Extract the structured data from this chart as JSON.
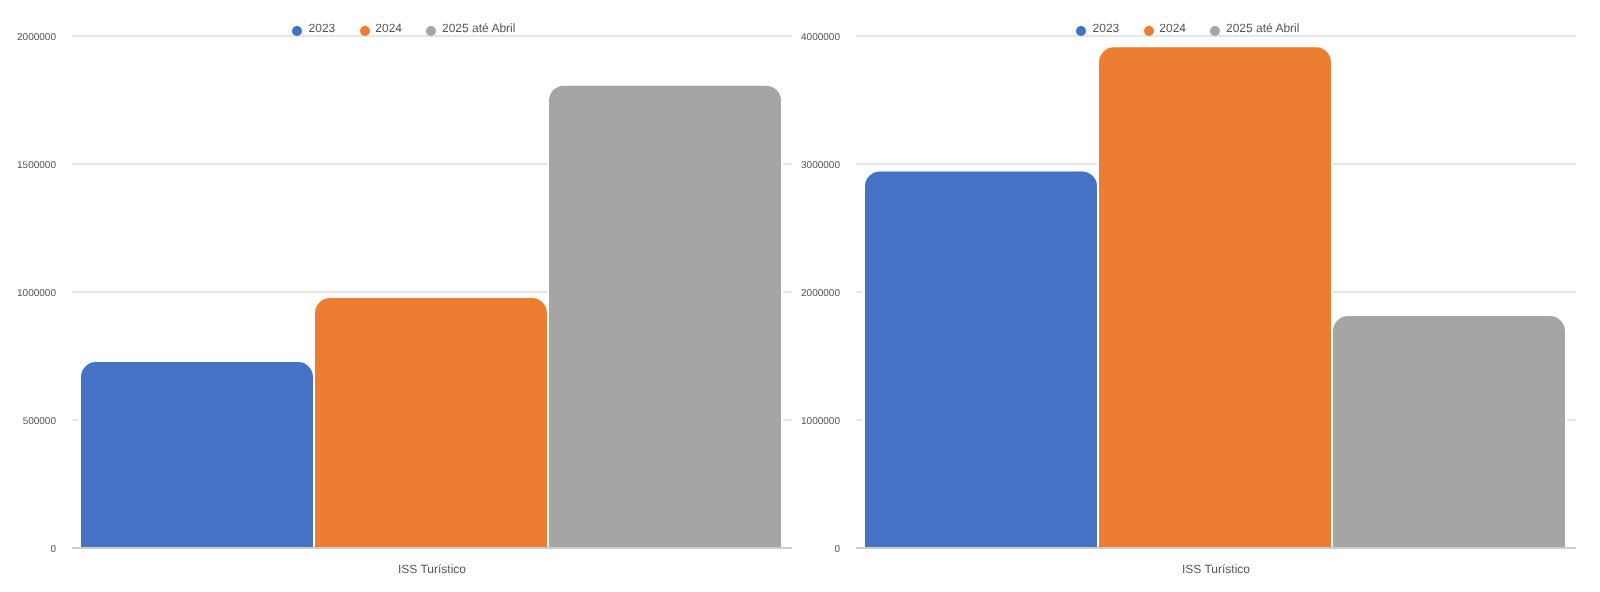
{
  "chart_data": [
    {
      "type": "bar",
      "categories": [
        "ISS Turístico"
      ],
      "series": [
        {
          "name": "2023",
          "color": "#4472c4",
          "values": [
            730000
          ]
        },
        {
          "name": "2024",
          "color": "#ed7d31",
          "values": [
            980000
          ]
        },
        {
          "name": "2025 até Abril",
          "color": "#a5a5a5",
          "values": [
            1810000
          ]
        }
      ],
      "ylim": [
        0,
        2000000
      ],
      "yticks": [
        0,
        500000,
        1000000,
        1500000,
        2000000
      ],
      "grid": "y",
      "legend": "top"
    },
    {
      "type": "bar",
      "categories": [
        "ISS Turístico"
      ],
      "series": [
        {
          "name": "2023",
          "color": "#4472c4",
          "values": [
            2950000
          ]
        },
        {
          "name": "2024",
          "color": "#ed7d31",
          "values": [
            3920000
          ]
        },
        {
          "name": "2025 até Abril",
          "color": "#a5a5a5",
          "values": [
            1820000
          ]
        }
      ],
      "ylim": [
        0,
        4000000
      ],
      "yticks": [
        0,
        1000000,
        2000000,
        3000000,
        4000000
      ],
      "grid": "y",
      "legend": "top"
    }
  ]
}
